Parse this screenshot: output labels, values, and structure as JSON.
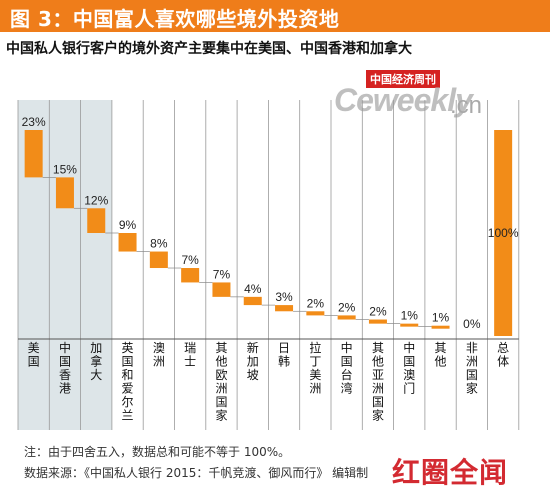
{
  "header": {
    "title": "图 3：中国富人喜欢哪些境外投资地",
    "subtitle": "中国私人银行客户的境外资产主要集中在美国、中国香港和加拿大"
  },
  "logo": {
    "brand_cn": "中国经济周刊",
    "brand_main": "Ceweekly",
    "brand_tld": ".cn"
  },
  "notes": {
    "note1": "注：由于四舍五入，数据总和可能不等于 100%。",
    "note2": "数据来源：《中国私人银行 2015：千帆竞渡、御风而行》 编辑制"
  },
  "watermark": "红圈全闻",
  "colors": {
    "banner": "#ef7d1a",
    "bar": "#f28c18",
    "highlight_band": "#dde5e8",
    "connector": "#888888"
  },
  "chart_data": {
    "type": "waterfall",
    "title": "",
    "categories": [
      "美国",
      "中国香港",
      "加拿大",
      "英国和爱尔兰",
      "澳洲",
      "瑞士",
      "其他欧洲国家",
      "新加坡",
      "日韩",
      "拉丁美洲",
      "中国台湾",
      "其他亚洲国家",
      "中国澳门",
      "其他",
      "非洲国家",
      "总体"
    ],
    "values": [
      23,
      15,
      12,
      9,
      8,
      7,
      7,
      4,
      3,
      2,
      2,
      2,
      1,
      1,
      0,
      100
    ],
    "labels": [
      "23%",
      "15%",
      "12%",
      "9%",
      "8%",
      "7%",
      "7%",
      "4%",
      "3%",
      "2%",
      "2%",
      "2%",
      "1%",
      "1%",
      "0%",
      "100%"
    ],
    "total_index": 15,
    "highlighted_categories": [
      "美国",
      "中国香港",
      "加拿大"
    ],
    "ylim": [
      0,
      100
    ],
    "grid": false,
    "legend": "none"
  }
}
